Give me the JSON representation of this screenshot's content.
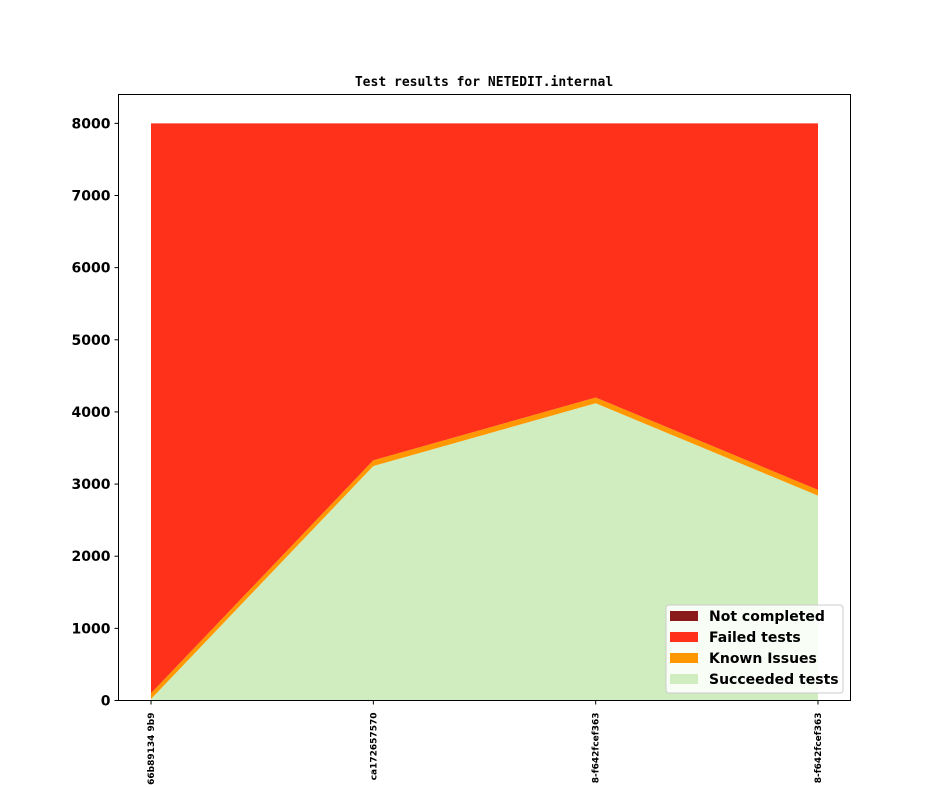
{
  "chart_data": {
    "type": "area",
    "stacked": true,
    "title": "Test results for NETEDIT.internal",
    "xlabel": "",
    "ylabel": "",
    "ylim": [
      0,
      8400
    ],
    "yticks": [
      0,
      1000,
      2000,
      3000,
      4000,
      5000,
      6000,
      7000,
      8000
    ],
    "categories": [
      "66b89134 9b9",
      "ca172657570",
      "8-f642fcef363",
      "8-f642fcef363"
    ],
    "series": [
      {
        "name": "Succeeded tests",
        "color": "#d0edc0",
        "values": [
          20,
          3250,
          4120,
          2840
        ]
      },
      {
        "name": "Known Issues",
        "color": "#ff9800",
        "values": [
          80,
          80,
          80,
          80
        ]
      },
      {
        "name": "Failed tests",
        "color": "#ff311a",
        "values": [
          7900,
          4670,
          3800,
          5080
        ]
      },
      {
        "name": "Not completed",
        "color": "#8b1a1a",
        "values": [
          0,
          0,
          0,
          0
        ]
      }
    ],
    "legend_position": "lower-right",
    "legend_order": [
      "Not completed",
      "Failed tests",
      "Known Issues",
      "Succeeded tests"
    ]
  }
}
